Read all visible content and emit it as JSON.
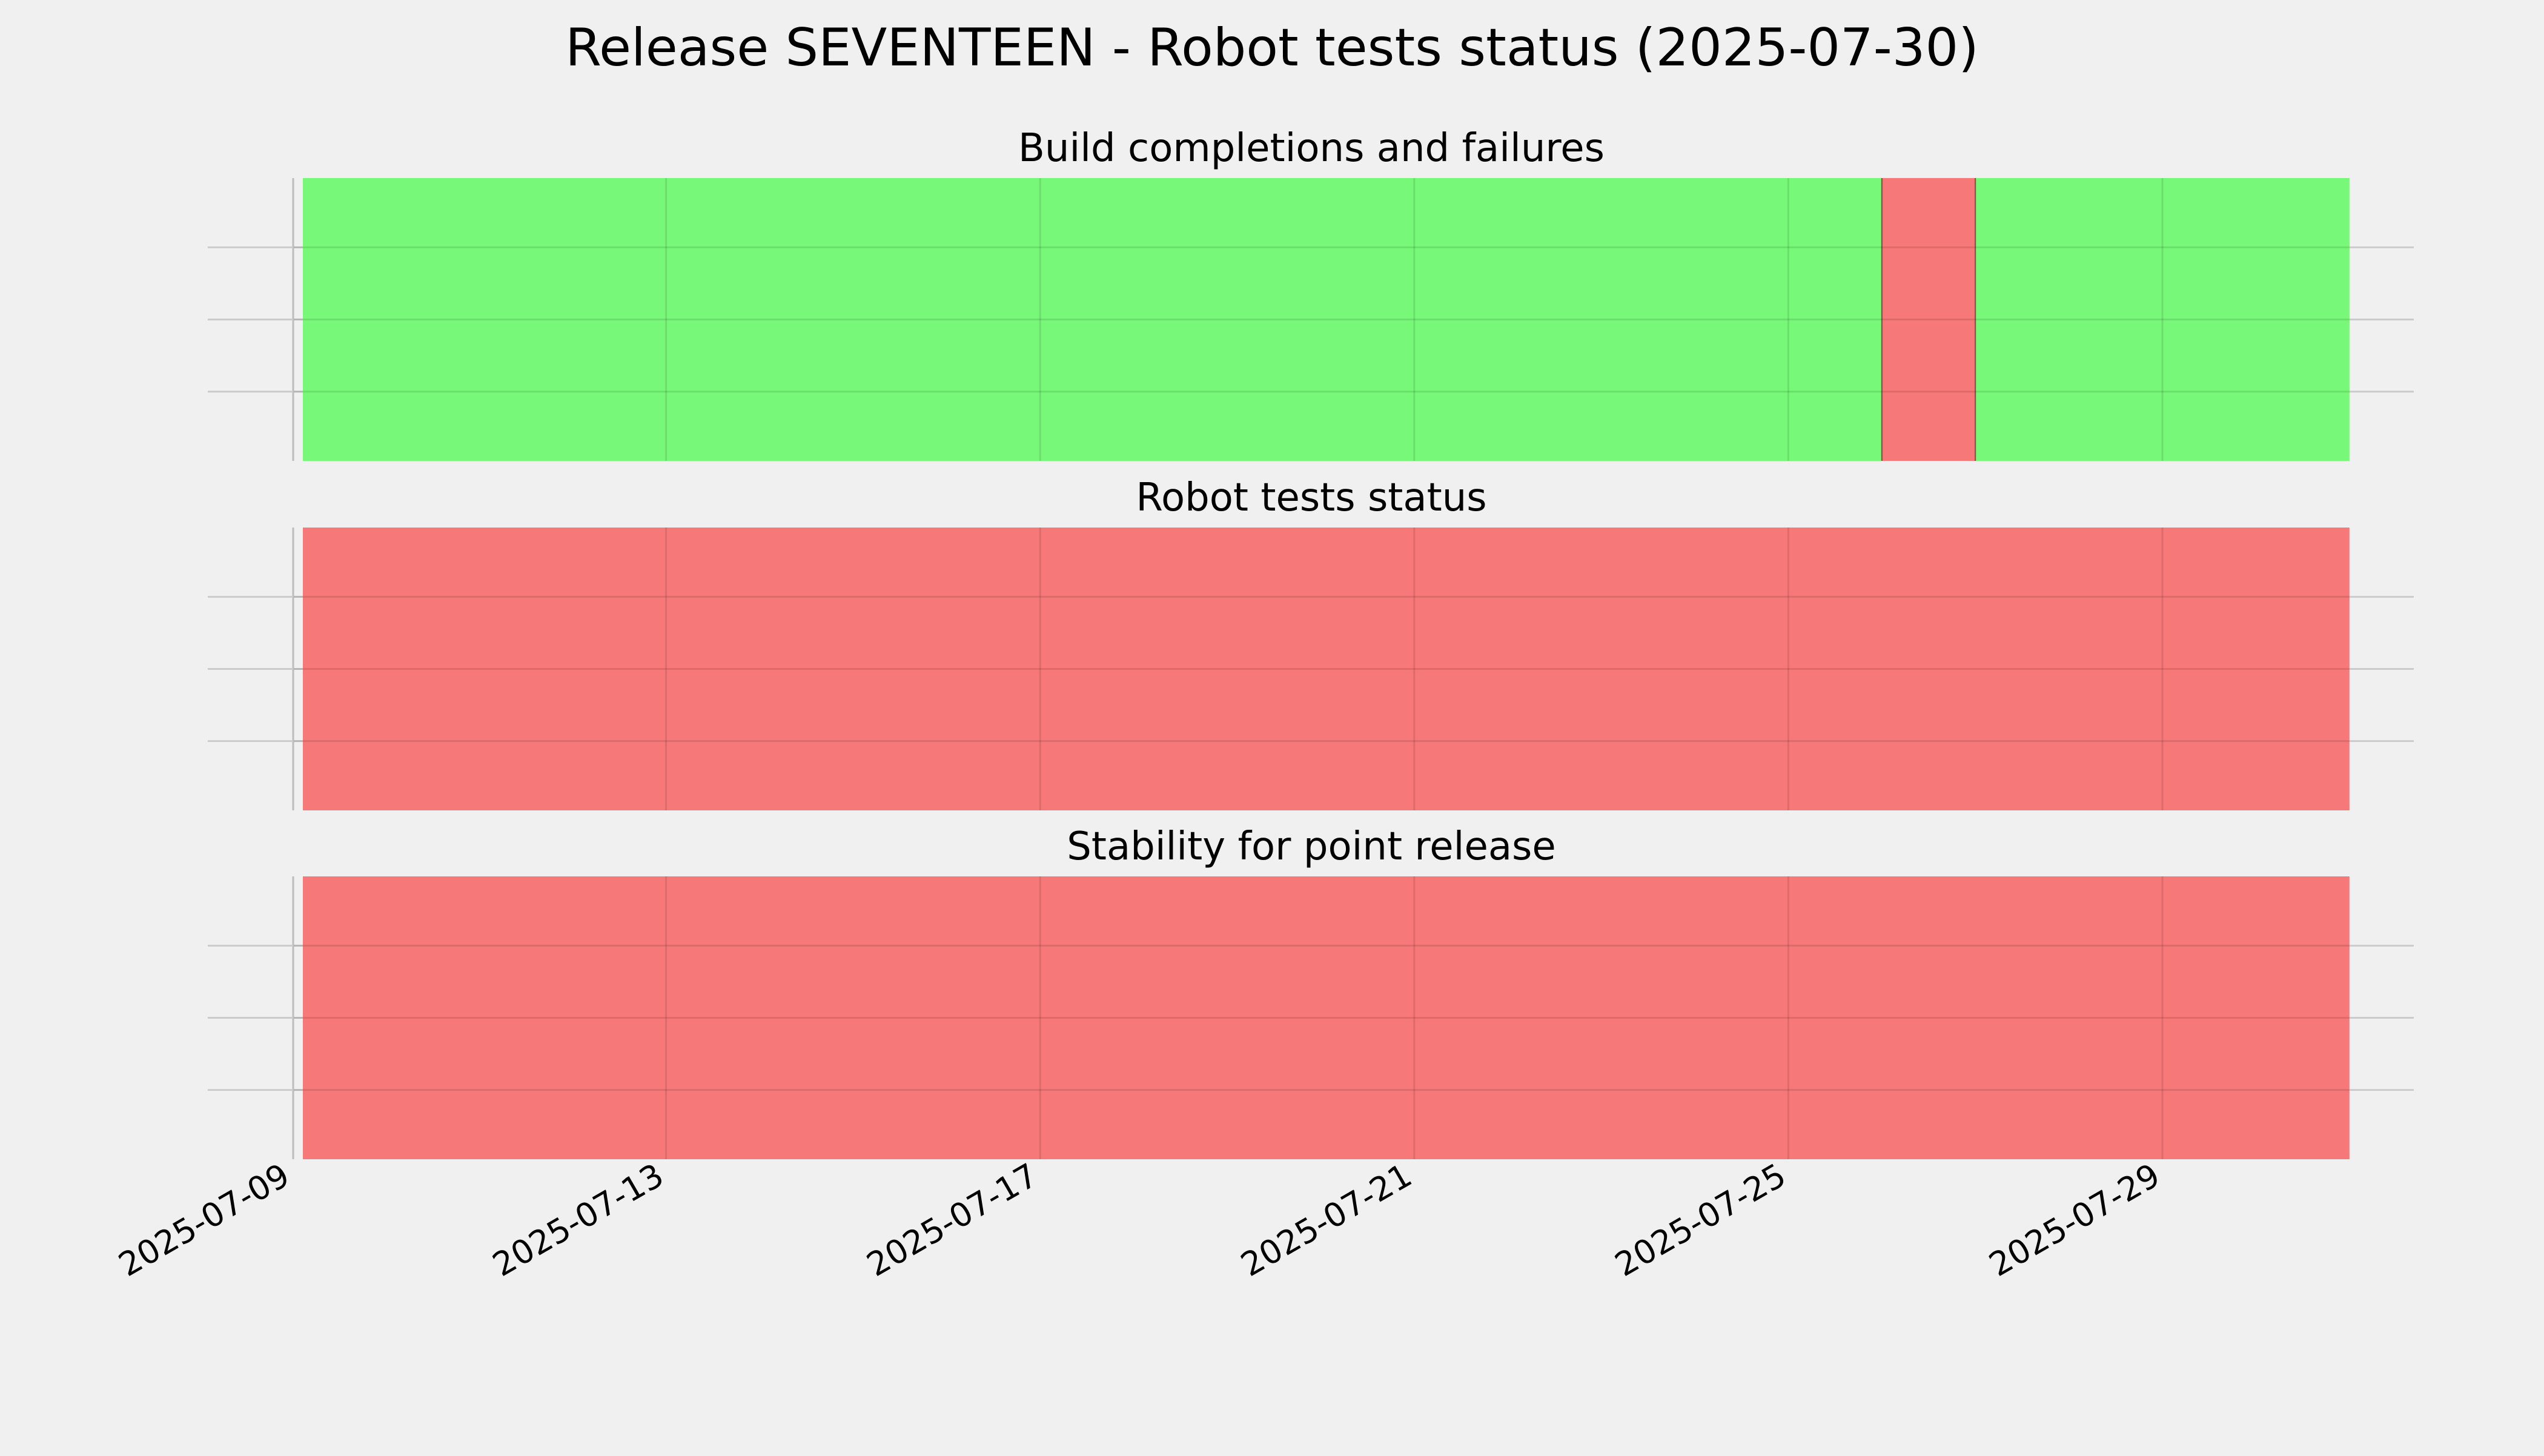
{
  "chart_data": {
    "title": "Release SEVENTEEN - Robot tests status (2025-07-30)",
    "type": "timeline",
    "x_axis": {
      "type": "date",
      "range": [
        "2025-07-09",
        "2025-07-31"
      ],
      "ticks": [
        "2025-07-09",
        "2025-07-13",
        "2025-07-17",
        "2025-07-21",
        "2025-07-25",
        "2025-07-29"
      ],
      "shared": true
    },
    "grid": true,
    "panels": [
      {
        "title": "Build completions and failures",
        "segments": [
          {
            "start": "2025-07-09",
            "end": "2025-07-26",
            "status": "pass"
          },
          {
            "start": "2025-07-26",
            "end": "2025-07-27",
            "status": "fail"
          },
          {
            "start": "2025-07-27",
            "end": "2025-07-31",
            "status": "pass"
          }
        ]
      },
      {
        "title": "Robot tests status",
        "segments": [
          {
            "start": "2025-07-09",
            "end": "2025-07-31",
            "status": "fail"
          }
        ]
      },
      {
        "title": "Stability for point release",
        "segments": [
          {
            "start": "2025-07-09",
            "end": "2025-07-31",
            "status": "fail"
          }
        ]
      }
    ],
    "colors": {
      "pass": "#78f878",
      "fail": "#f77878",
      "background": "#f0f0f0",
      "grid": "#cbcbcb"
    }
  }
}
